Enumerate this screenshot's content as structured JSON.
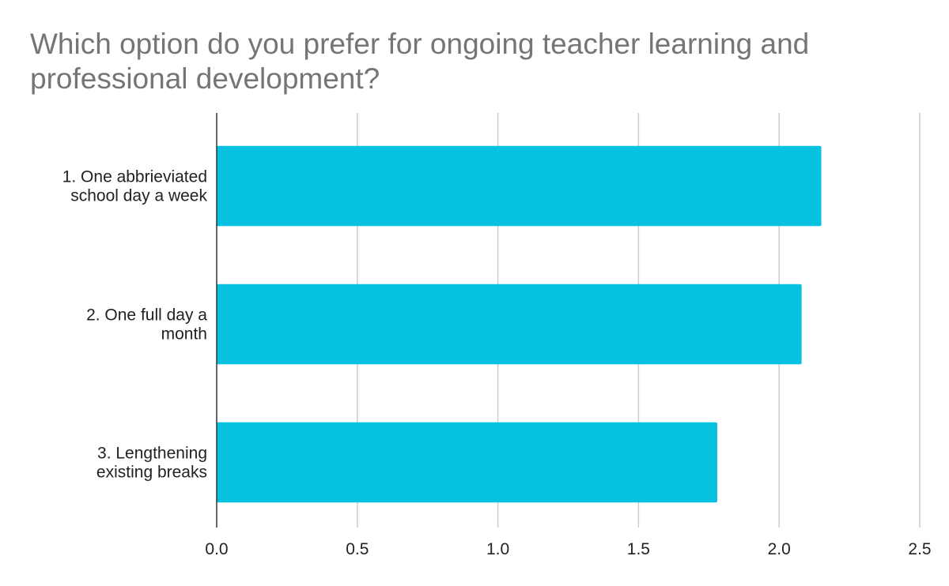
{
  "chart_data": {
    "type": "bar",
    "orientation": "horizontal",
    "title": "Which option do you prefer for ongoing teacher learning and professional development?",
    "categories": [
      [
        "1. One abbrieviated",
        "school day a week"
      ],
      [
        "2. One full day a",
        "month"
      ],
      [
        "3. Lengthening",
        "existing breaks"
      ]
    ],
    "values": [
      2.15,
      2.08,
      1.78
    ],
    "xlim": [
      0,
      2.5
    ],
    "x_ticks": [
      "0.0",
      "0.5",
      "1.0",
      "1.5",
      "2.0",
      "2.5"
    ],
    "x_tick_values": [
      0,
      0.5,
      1.0,
      1.5,
      2.0,
      2.5
    ],
    "grid": true,
    "legend": "none",
    "bar_color": "#06c1df"
  }
}
